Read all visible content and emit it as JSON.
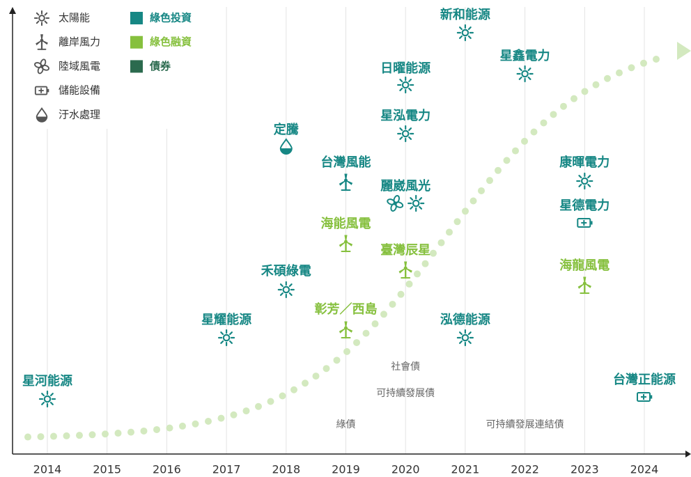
{
  "legend": {
    "assets": [
      {
        "label": "太陽能",
        "icon": "solar"
      },
      {
        "label": "離岸風力",
        "icon": "offshore"
      },
      {
        "label": "陸域風電",
        "icon": "onshore"
      },
      {
        "label": "儲能設備",
        "icon": "storage"
      },
      {
        "label": "汙水處理",
        "icon": "water"
      }
    ],
    "financing": [
      {
        "label": "綠色投資",
        "color": "#168784"
      },
      {
        "label": "綠色融資",
        "color": "#86c03e"
      },
      {
        "label": "債券",
        "color": "#2b6a4e"
      }
    ]
  },
  "years": [
    2014,
    2015,
    2016,
    2017,
    2018,
    2019,
    2020,
    2021,
    2022,
    2023,
    2024
  ],
  "projects": [
    {
      "name": "星河能源",
      "year": 2014,
      "icons": [
        "solar"
      ],
      "color": "#168784"
    },
    {
      "name": "星耀能源",
      "year": 2017,
      "icons": [
        "solar"
      ],
      "color": "#168784"
    },
    {
      "name": "定騰",
      "year": 2018,
      "icons": [
        "water"
      ],
      "color": "#168784"
    },
    {
      "name": "禾碩綠電",
      "year": 2018,
      "icons": [
        "solar"
      ],
      "color": "#168784"
    },
    {
      "name": "台灣風能",
      "year": 2019,
      "icons": [
        "offshore"
      ],
      "color": "#168784"
    },
    {
      "name": "海能風電",
      "year": 2019,
      "icons": [
        "offshore"
      ],
      "color": "#86c03e"
    },
    {
      "name": "彰芳／西島",
      "year": 2019,
      "icons": [
        "offshore"
      ],
      "color": "#86c03e"
    },
    {
      "name": "日曜能源",
      "year": 2020,
      "icons": [
        "solar"
      ],
      "color": "#168784"
    },
    {
      "name": "星泓電力",
      "year": 2020,
      "icons": [
        "solar"
      ],
      "color": "#168784"
    },
    {
      "name": "麗崴風光",
      "year": 2020,
      "icons": [
        "onshore",
        "solar"
      ],
      "color": "#168784"
    },
    {
      "name": "臺灣辰星",
      "year": 2020,
      "icons": [
        "offshore"
      ],
      "color": "#86c03e"
    },
    {
      "name": "新和能源",
      "year": 2021,
      "icons": [
        "solar"
      ],
      "color": "#168784"
    },
    {
      "name": "泓德能源",
      "year": 2021,
      "icons": [
        "solar"
      ],
      "color": "#168784"
    },
    {
      "name": "星鑫電力",
      "year": 2022,
      "icons": [
        "solar"
      ],
      "color": "#168784"
    },
    {
      "name": "康暉電力",
      "year": 2023,
      "icons": [
        "solar"
      ],
      "color": "#168784"
    },
    {
      "name": "星德電力",
      "year": 2023,
      "icons": [
        "storage"
      ],
      "color": "#168784"
    },
    {
      "name": "海龍風電",
      "year": 2023,
      "icons": [
        "offshore"
      ],
      "color": "#86c03e"
    },
    {
      "name": "台灣正能源",
      "year": 2024,
      "icons": [
        "storage"
      ],
      "color": "#168784"
    }
  ],
  "bonds": [
    {
      "label": "社會債",
      "year": 2020
    },
    {
      "label": "可持續發展債",
      "year": 2020
    },
    {
      "label": "綠債",
      "year": 2019
    },
    {
      "label": "可持續發展連結債",
      "year": 2022
    }
  ]
}
